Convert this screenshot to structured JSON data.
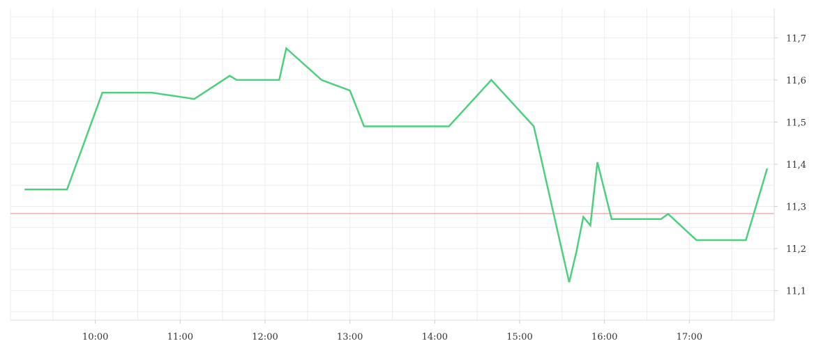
{
  "chart_data": {
    "type": "line",
    "x_ticks": [
      "10:00",
      "11:00",
      "12:00",
      "13:00",
      "14:00",
      "15:00",
      "16:00",
      "17:00"
    ],
    "y_ticks": [
      "11,1",
      "11,2",
      "11,3",
      "11,4",
      "11,5",
      "11,6",
      "11,7"
    ],
    "ylim": [
      11.03,
      11.77
    ],
    "xlim": [
      "09:00",
      "18:00"
    ],
    "y_axis_position": "right",
    "grid": true,
    "reference_line": {
      "value": 11.283,
      "color": "#e08a8a"
    },
    "series": [
      {
        "color": "#4cd07d",
        "x": [
          "09:10",
          "09:40",
          "10:05",
          "10:40",
          "11:10",
          "11:35",
          "11:40",
          "12:10",
          "12:15",
          "12:40",
          "13:00",
          "13:10",
          "14:10",
          "14:40",
          "15:10",
          "15:35",
          "15:40",
          "15:45",
          "15:50",
          "15:55",
          "16:05",
          "16:40",
          "16:45",
          "17:05",
          "17:40",
          "17:55"
        ],
        "y": [
          11.34,
          11.34,
          11.57,
          11.57,
          11.555,
          11.61,
          11.6,
          11.6,
          11.675,
          11.6,
          11.575,
          11.49,
          11.49,
          11.6,
          11.49,
          11.12,
          11.19,
          11.275,
          11.255,
          11.405,
          11.27,
          11.27,
          11.282,
          11.22,
          11.22,
          11.39
        ]
      }
    ]
  }
}
